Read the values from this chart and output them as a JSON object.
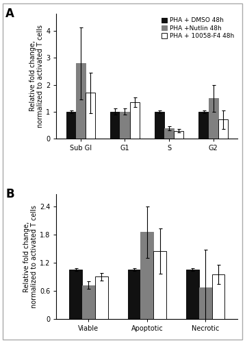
{
  "panel_A": {
    "categories": [
      "Sub GI",
      "G1",
      "S",
      "G2"
    ],
    "dmso_values": [
      1.0,
      1.0,
      1.0,
      1.0
    ],
    "nutlin_values": [
      2.8,
      1.0,
      0.37,
      1.5
    ],
    "f4_values": [
      1.7,
      1.35,
      0.28,
      0.7
    ],
    "dmso_err": [
      0.05,
      0.12,
      0.05,
      0.05
    ],
    "nutlin_err": [
      1.35,
      0.12,
      0.07,
      0.5
    ],
    "f4_err": [
      0.75,
      0.18,
      0.06,
      0.35
    ],
    "ylim": [
      0,
      4.65
    ],
    "yticks": [
      0,
      1,
      2,
      3,
      4
    ],
    "ylabel": "Relative fold change,\nnormalized to activated T cells"
  },
  "panel_B": {
    "categories": [
      "Viable",
      "Apoptotic",
      "Necrotic"
    ],
    "dmso_values": [
      1.05,
      1.05,
      1.05
    ],
    "nutlin_values": [
      0.72,
      1.85,
      0.67
    ],
    "f4_values": [
      0.9,
      1.45,
      0.95
    ],
    "dmso_err": [
      0.03,
      0.03,
      0.03
    ],
    "nutlin_err": [
      0.08,
      0.55,
      0.8
    ],
    "f4_err": [
      0.08,
      0.48,
      0.2
    ],
    "ylim": [
      0,
      2.65
    ],
    "yticks": [
      0,
      0.6,
      1.2,
      1.8,
      2.4
    ],
    "ylabel": "Relative fold change,\nnormalized to activated T cells"
  },
  "legend_labels": [
    "PHA + DMSO 48h",
    "PHA +Nutlin 48h",
    "PHA + 10058-F4 48h"
  ],
  "bar_colors": [
    "#111111",
    "#808080",
    "#ffffff"
  ],
  "bar_edgecolors": [
    "#111111",
    "#808080",
    "#111111"
  ],
  "bar_width": 0.22,
  "panel_A_label": "A",
  "panel_B_label": "B",
  "fig_bg": "#ffffff",
  "font_size": 7.0,
  "outer_border_color": "#cccccc"
}
